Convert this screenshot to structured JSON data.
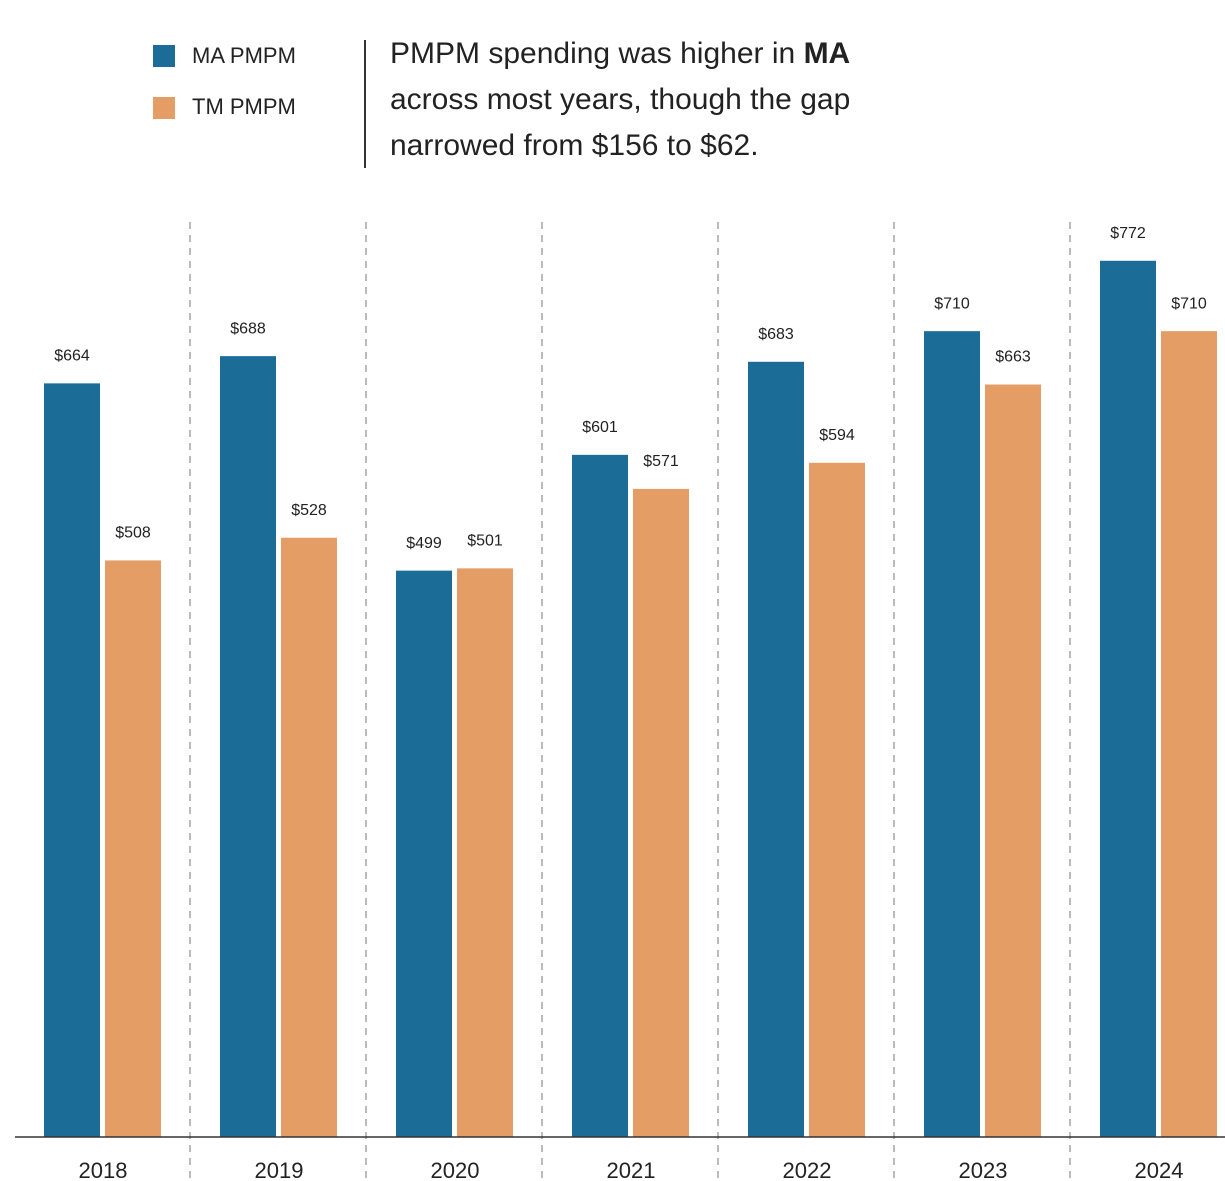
{
  "chart_data": {
    "type": "bar",
    "title_parts": [
      "PMPM spending was higher in",
      "MA",
      "across most years, though the gap narrowed from $156 to $62."
    ],
    "categories": [
      "2018",
      "2019",
      "2020",
      "2021",
      "2022",
      "2023",
      "2024"
    ],
    "series": [
      {
        "name": "MA PMPM",
        "color": "#1b6d98",
        "values": [
          664,
          688,
          499,
          601,
          683,
          710,
          772
        ],
        "value_labels": [
          "$664",
          "$688",
          "$499",
          "$601",
          "$683",
          "$710",
          "$772"
        ]
      },
      {
        "name": "TM PMPM",
        "color": "#e59d66",
        "values": [
          508,
          528,
          501,
          571,
          594,
          663,
          710
        ],
        "value_labels": [
          "$508",
          "$528",
          "$501",
          "$571",
          "$594",
          "$663",
          "$710"
        ]
      }
    ],
    "ylim": [
      0,
      800
    ]
  }
}
